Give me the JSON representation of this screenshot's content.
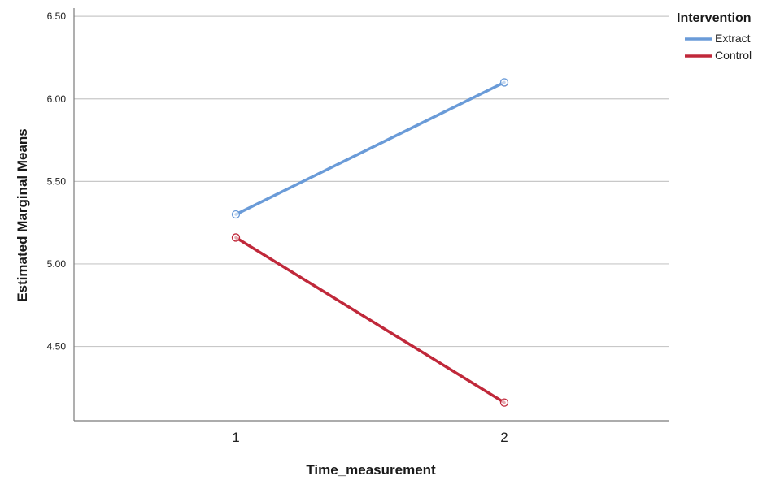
{
  "chart_data": {
    "type": "line",
    "title": "",
    "xlabel": "Time_measurement",
    "ylabel": "Estimated Marginal Means",
    "categories": [
      "1",
      "2"
    ],
    "ylim": [
      4.05,
      6.55
    ],
    "yticks": [
      "4.50",
      "5.00",
      "5.50",
      "6.00",
      "6.50"
    ],
    "grid": "horizontal",
    "legend": {
      "title": "Intervention",
      "position": "top-right"
    },
    "series": [
      {
        "name": "Extract",
        "values": [
          5.3,
          6.1
        ],
        "color": "#6a9bd8"
      },
      {
        "name": "Control",
        "values": [
          5.16,
          4.16
        ],
        "color": "#c0283a"
      }
    ]
  }
}
